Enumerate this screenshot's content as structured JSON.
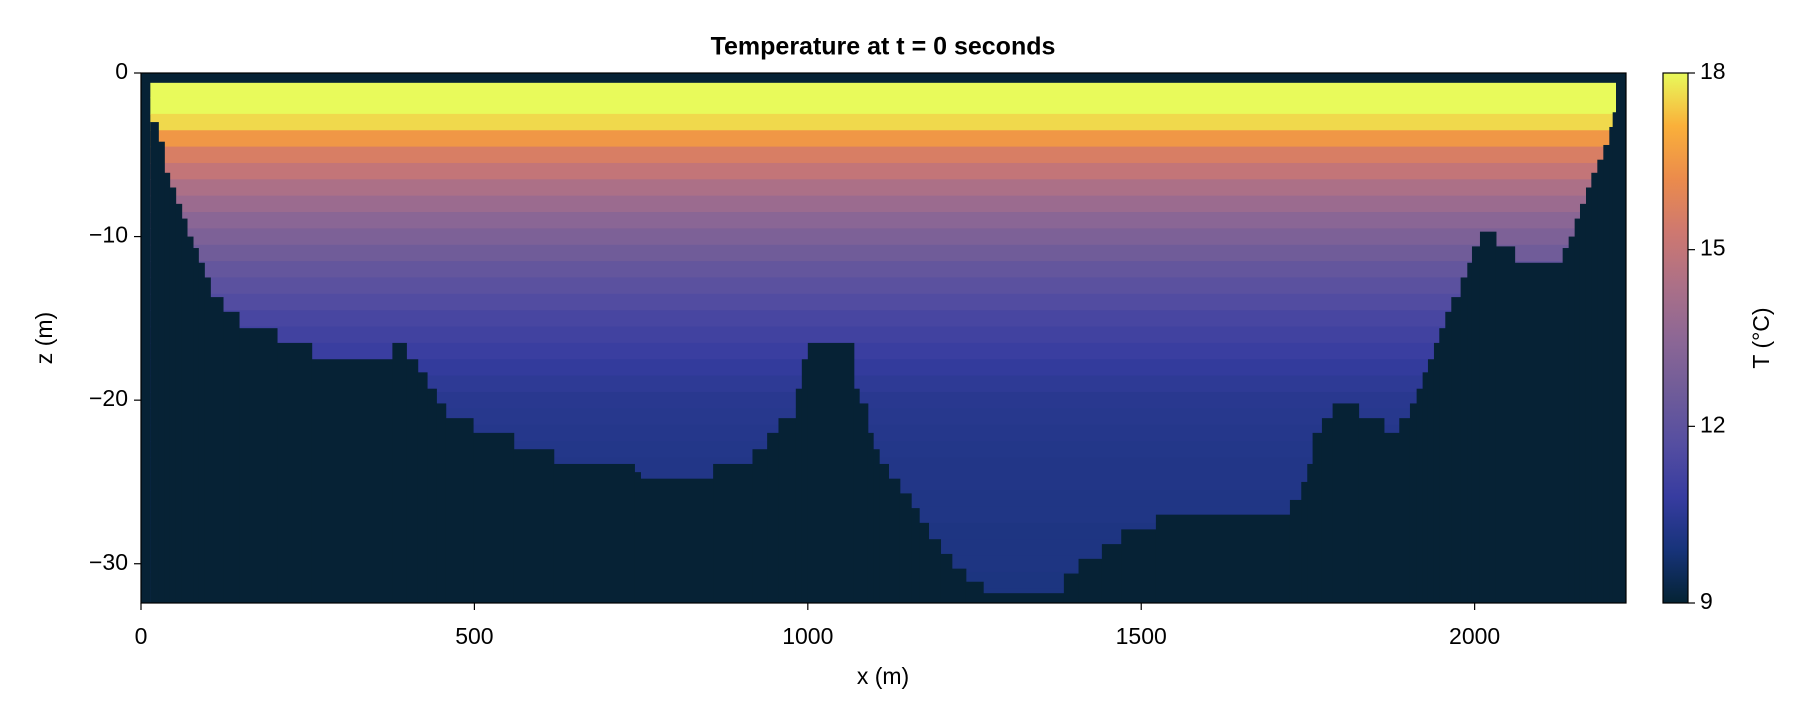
{
  "chart_data": {
    "type": "heatmap",
    "title": "Temperature at t = 0 seconds",
    "xlabel": "x (m)",
    "ylabel": "z (m)",
    "xlim": [
      0,
      2227
    ],
    "ylim": [
      -32.4,
      0
    ],
    "xticks": [
      0,
      500,
      1000,
      1500,
      2000
    ],
    "yticks": [
      0,
      {
        "value": -10,
        "label": "−10"
      },
      {
        "value": -20,
        "label": "−20"
      },
      {
        "value": -30,
        "label": "−30"
      }
    ],
    "z": [
      0,
      -1,
      -2,
      -3,
      -4,
      -5,
      -6,
      -7,
      -8,
      -9,
      -10,
      -11,
      -12,
      -13,
      -14,
      -15,
      -16,
      -17,
      -18,
      -19,
      -20,
      -21,
      -22,
      -23,
      -24,
      -25,
      -26,
      -27,
      -28,
      -29,
      -30,
      -31,
      -32
    ],
    "temperature": [
      18,
      18,
      18,
      17.6,
      16.5,
      15.6,
      15,
      14.4,
      13.9,
      13.4,
      13,
      12.6,
      12.2,
      11.9,
      11.6,
      11.3,
      11.1,
      10.9,
      10.7,
      10.55,
      10.4,
      10.35,
      10.3,
      10.25,
      10.2,
      10.2,
      10.15,
      10.15,
      10.1,
      10.1,
      10.1,
      10.05,
      10.05
    ],
    "surface": -0.6,
    "bottom_x_edges": [
      14,
      26,
      35,
      43,
      52,
      61,
      69,
      78,
      86,
      95,
      104,
      123,
      147,
      204,
      256,
      377,
      398,
      415,
      429,
      443,
      457,
      498,
      559,
      619,
      740,
      749,
      858,
      917,
      939,
      956,
      982,
      991,
      1000,
      1069,
      1077,
      1090,
      1098,
      1107,
      1121,
      1138,
      1155,
      1167,
      1181,
      1199,
      1216,
      1237,
      1263,
      1384,
      1406,
      1441,
      1470,
      1522,
      1723,
      1740,
      1749,
      1757,
      1771,
      1787,
      1826,
      1864,
      1887,
      1903,
      1913,
      1922,
      1930,
      1939,
      1947,
      1956,
      1965,
      1979,
      1989,
      1996,
      2008,
      2032,
      2060,
      2132,
      2141,
      2150,
      2158,
      2167,
      2175,
      2184,
      2193,
      2202,
      2207,
      2212
    ],
    "bottom": [
      -3.0,
      -4.2,
      -6.1,
      -7.0,
      -8.0,
      -8.9,
      -10.0,
      -10.7,
      -11.6,
      -12.5,
      -13.7,
      -14.6,
      -15.6,
      -16.5,
      -17.5,
      -16.5,
      -17.5,
      -18.3,
      -19.3,
      -20.2,
      -21.1,
      -22.0,
      -23.0,
      -23.9,
      -24.4,
      -24.8,
      -23.9,
      -23.0,
      -22.0,
      -21.1,
      -19.3,
      -17.5,
      -16.5,
      -19.3,
      -20.2,
      -22.0,
      -23.0,
      -23.9,
      -24.8,
      -25.7,
      -26.6,
      -27.5,
      -28.5,
      -29.4,
      -30.3,
      -31.1,
      -31.8,
      -30.6,
      -29.7,
      -28.8,
      -27.9,
      -27.0,
      -26.1,
      -25.0,
      -23.9,
      -22.0,
      -21.1,
      -20.2,
      -21.1,
      -22.0,
      -21.1,
      -20.2,
      -19.3,
      -18.3,
      -17.5,
      -16.5,
      -15.6,
      -14.6,
      -13.7,
      -12.5,
      -11.6,
      -10.6,
      -9.7,
      -10.6,
      -11.6,
      -10.7,
      -10.0,
      -8.9,
      -8.0,
      -7.0,
      -6.1,
      -5.3,
      -4.4,
      -3.3,
      -2.4
    ],
    "land_color": "#062235",
    "colormap": [
      "#042333",
      "#17337a",
      "#373ca0",
      "#554ea1",
      "#705c99",
      "#8d6795",
      "#ac7087",
      "#ce7870",
      "#eb8b4c",
      "#fab03a",
      "#e8fa5b"
    ],
    "colorbar": {
      "label": "T (°C)",
      "lim": [
        9,
        18
      ],
      "ticks": [
        9,
        12,
        15,
        18
      ]
    }
  }
}
